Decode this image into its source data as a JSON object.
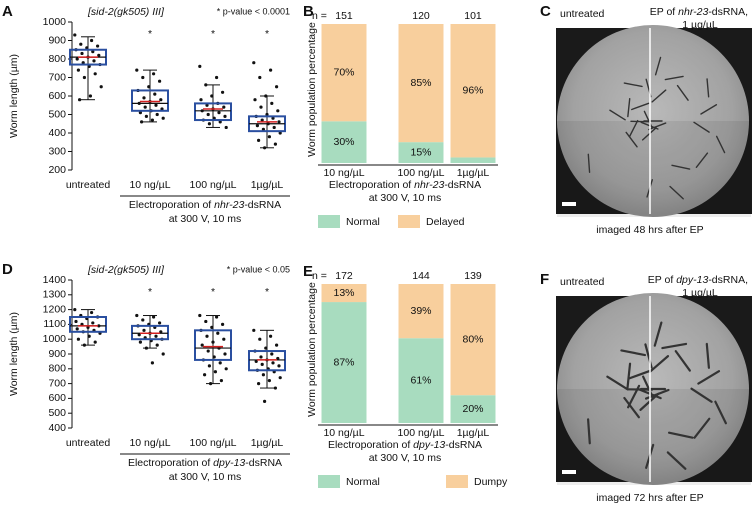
{
  "chart_data": [
    {
      "type": "box",
      "panel_label": "A",
      "title": "[sid-2(gk505) III]",
      "note": "* p-value < 0.0001",
      "ylabel": "Worm length (µm)",
      "categories": [
        "untreated",
        "10 ng/µL",
        "100 ng/µL",
        "1µg/µL"
      ],
      "xlabel": {
        "line1": [
          "Electroporation of ",
          "nhr-23",
          "-dsRNA"
        ],
        "line2": "at 300 V, 10 ms"
      },
      "ylim": [
        200,
        1000
      ],
      "yticks": [
        200,
        300,
        400,
        500,
        600,
        700,
        800,
        900,
        1000
      ],
      "box_color": "#2a4fa0",
      "mean_color": "#d42020",
      "significance": [
        null,
        "*",
        "*",
        "*"
      ],
      "boxes": [
        {
          "low": 580,
          "q1": 770,
          "median": 810,
          "q3": 850,
          "high": 920,
          "mean": 810,
          "points": [
            930,
            900,
            880,
            870,
            860,
            850,
            840,
            830,
            820,
            810,
            800,
            790,
            780,
            770,
            760,
            740,
            720,
            700,
            650,
            600,
            580
          ]
        },
        {
          "low": 460,
          "q1": 520,
          "median": 560,
          "q3": 630,
          "high": 740,
          "mean": 570,
          "points": [
            740,
            720,
            700,
            680,
            650,
            630,
            610,
            590,
            580,
            570,
            560,
            550,
            540,
            530,
            520,
            510,
            500,
            490,
            480,
            470,
            460
          ]
        },
        {
          "low": 430,
          "q1": 470,
          "median": 520,
          "q3": 560,
          "high": 660,
          "mean": 530,
          "points": [
            760,
            700,
            660,
            620,
            600,
            580,
            560,
            550,
            540,
            530,
            520,
            510,
            500,
            490,
            480,
            470,
            460,
            450,
            430
          ]
        },
        {
          "low": 320,
          "q1": 410,
          "median": 450,
          "q3": 490,
          "high": 600,
          "mean": 460,
          "points": [
            780,
            740,
            700,
            650,
            600,
            580,
            560,
            540,
            520,
            500,
            490,
            480,
            470,
            460,
            450,
            440,
            430,
            420,
            400,
            380,
            360,
            340,
            320
          ]
        }
      ]
    },
    {
      "type": "stacked_bar",
      "panel_label": "B",
      "n_label": "n =",
      "n": [
        151,
        120,
        101
      ],
      "ylabel": "Worm population percentage",
      "categories": [
        "10 ng/µL",
        "100 ng/µL",
        "1µg/µL"
      ],
      "xlabel": {
        "line1": [
          "Electroporation of ",
          "nhr-23",
          "-dsRNA"
        ],
        "line2": "at 300 V, 10 ms"
      },
      "ylim": [
        0,
        100
      ],
      "series": [
        {
          "name": "Normal",
          "color": "#a8dcbf",
          "values": [
            30,
            15,
            4
          ],
          "value_labels": [
            "30%",
            "15%",
            null
          ]
        },
        {
          "name": "Delayed",
          "color": "#f8cf9d",
          "values": [
            70,
            85,
            96
          ],
          "value_labels": [
            "70%",
            "85%",
            "96%"
          ]
        }
      ]
    },
    {
      "type": "box",
      "panel_label": "D",
      "title": "[sid-2(gk505) III]",
      "note": "* p-value < 0.05",
      "ylabel": "Worm length (µm)",
      "categories": [
        "untreated",
        "10 ng/µL",
        "100 ng/µL",
        "1µg/µL"
      ],
      "xlabel": {
        "line1": [
          "Electroporation of ",
          "dpy-13",
          "-dsRNA"
        ],
        "line2": "at 300 V, 10 ms"
      },
      "ylim": [
        400,
        1400
      ],
      "yticks": [
        400,
        500,
        600,
        700,
        800,
        900,
        1000,
        1100,
        1200,
        1300,
        1400
      ],
      "box_color": "#2a4fa0",
      "mean_color": "#d42020",
      "significance": [
        null,
        "*",
        "*",
        "*"
      ],
      "boxes": [
        {
          "low": 960,
          "q1": 1050,
          "median": 1090,
          "q3": 1150,
          "high": 1200,
          "mean": 1090,
          "points": [
            1200,
            1180,
            1160,
            1150,
            1140,
            1120,
            1110,
            1100,
            1090,
            1080,
            1070,
            1060,
            1050,
            1040,
            1020,
            1000,
            980,
            960
          ]
        },
        {
          "low": 940,
          "q1": 1000,
          "median": 1040,
          "q3": 1090,
          "high": 1160,
          "mean": 1040,
          "points": [
            1160,
            1150,
            1130,
            1110,
            1100,
            1090,
            1080,
            1060,
            1050,
            1040,
            1030,
            1020,
            1010,
            1000,
            990,
            980,
            960,
            940,
            900,
            840
          ]
        },
        {
          "low": 700,
          "q1": 860,
          "median": 940,
          "q3": 1060,
          "high": 1160,
          "mean": 950,
          "points": [
            1160,
            1150,
            1120,
            1100,
            1080,
            1060,
            1040,
            1020,
            1000,
            980,
            960,
            940,
            920,
            900,
            880,
            860,
            840,
            820,
            800,
            780,
            760,
            720,
            700
          ]
        },
        {
          "low": 670,
          "q1": 790,
          "median": 860,
          "q3": 920,
          "high": 1060,
          "mean": 860,
          "points": [
            1060,
            1020,
            1000,
            960,
            940,
            920,
            900,
            880,
            870,
            860,
            850,
            840,
            830,
            820,
            800,
            790,
            780,
            760,
            740,
            720,
            700,
            670,
            580
          ]
        }
      ]
    },
    {
      "type": "stacked_bar",
      "panel_label": "E",
      "n_label": "n =",
      "n": [
        172,
        144,
        139
      ],
      "ylabel": "Worm population percentage",
      "categories": [
        "10 ng/µL",
        "100 ng/µL",
        "1µg/µL"
      ],
      "xlabel": {
        "line1": [
          "Electroporation of ",
          "dpy-13",
          "-dsRNA"
        ],
        "line2": "at 300 V, 10 ms"
      },
      "ylim": [
        0,
        100
      ],
      "series": [
        {
          "name": "Normal",
          "color": "#a8dcbf",
          "values": [
            87,
            61,
            20
          ],
          "value_labels": [
            "87%",
            "61%",
            "20%"
          ]
        },
        {
          "name": "Dumpy",
          "color": "#f8cf9d",
          "values": [
            13,
            39,
            80
          ],
          "value_labels": [
            "13%",
            "39%",
            "80%"
          ]
        }
      ]
    }
  ],
  "images": [
    {
      "panel_label": "C",
      "left_label": "untreated",
      "right_label": [
        "EP of ",
        "nhr-23",
        "-dsRNA,",
        "1 µg/µL"
      ],
      "caption": "imaged 48 hrs after EP"
    },
    {
      "panel_label": "F",
      "left_label": "untreated",
      "right_label": [
        "EP of ",
        "dpy-13",
        "-dsRNA,",
        "1 µg/µL"
      ],
      "caption": "imaged 72 hrs after EP"
    }
  ]
}
